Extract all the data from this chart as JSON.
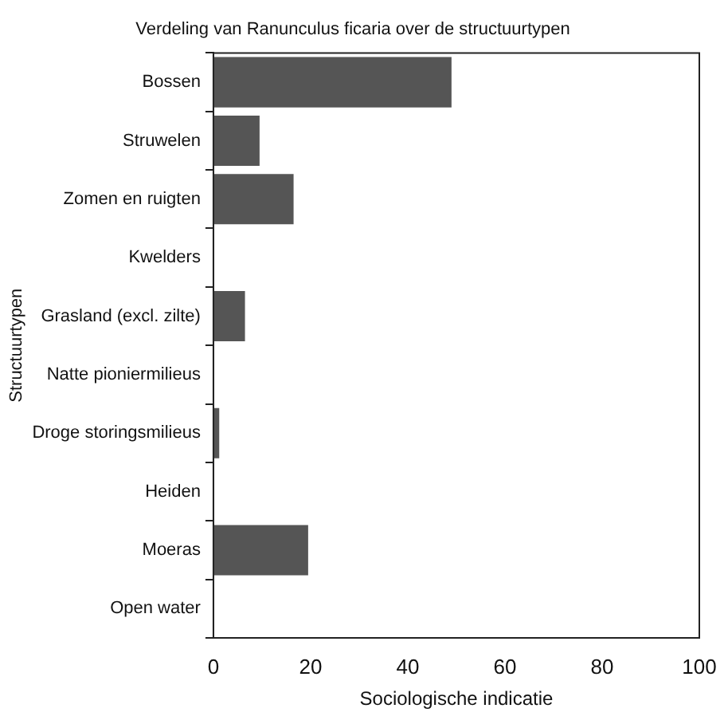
{
  "chart_data": {
    "type": "bar",
    "orientation": "horizontal",
    "title": "Verdeling van Ranunculus ficaria over de structuurtypen",
    "xlabel": "Sociologische indicatie",
    "ylabel": "Structuurtypen",
    "categories": [
      "Bossen",
      "Struwelen",
      "Zomen en ruigten",
      "Kwelders",
      "Grasland (excl. zilte)",
      "Natte pioniermilieus",
      "Droge storingsmilieus",
      "Heiden",
      "Moeras",
      "Open water"
    ],
    "values": [
      49,
      9.5,
      16.5,
      0,
      6.5,
      0,
      1.2,
      0,
      19.5,
      0
    ],
    "color": "#555555",
    "xlim": [
      0,
      100
    ],
    "xticks": [
      0,
      20,
      40,
      60,
      80,
      100
    ],
    "grid": false,
    "legend": false
  }
}
